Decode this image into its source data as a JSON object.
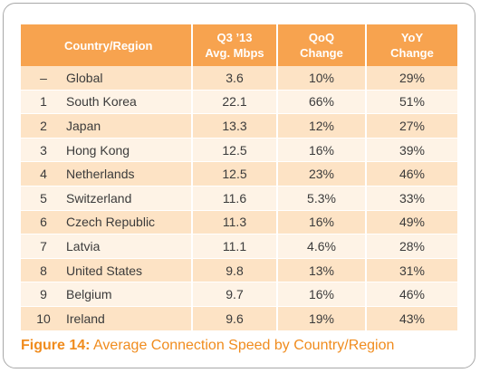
{
  "table": {
    "headers": {
      "country": "Country/Region",
      "speed_line1": "Q3 ’13",
      "speed_line2": "Avg. Mbps",
      "qoq_line1": "QoQ",
      "qoq_line2": "Change",
      "yoy_line1": "YoY",
      "yoy_line2": "Change"
    },
    "rows": [
      {
        "rank": "–",
        "country": "Global",
        "speed": "3.6",
        "qoq": "10%",
        "yoy": "29%"
      },
      {
        "rank": "1",
        "country": "South Korea",
        "speed": "22.1",
        "qoq": "66%",
        "yoy": "51%"
      },
      {
        "rank": "2",
        "country": "Japan",
        "speed": "13.3",
        "qoq": "12%",
        "yoy": "27%"
      },
      {
        "rank": "3",
        "country": "Hong Kong",
        "speed": "12.5",
        "qoq": "16%",
        "yoy": "39%"
      },
      {
        "rank": "4",
        "country": "Netherlands",
        "speed": "12.5",
        "qoq": "23%",
        "yoy": "46%"
      },
      {
        "rank": "5",
        "country": "Switzerland",
        "speed": "11.6",
        "qoq": "5.3%",
        "yoy": "33%"
      },
      {
        "rank": "6",
        "country": "Czech Republic",
        "speed": "11.3",
        "qoq": "16%",
        "yoy": "49%"
      },
      {
        "rank": "7",
        "country": "Latvia",
        "speed": "11.1",
        "qoq": "4.6%",
        "yoy": "28%"
      },
      {
        "rank": "8",
        "country": "United States",
        "speed": "9.8",
        "qoq": "13%",
        "yoy": "31%"
      },
      {
        "rank": "9",
        "country": "Belgium",
        "speed": "9.7",
        "qoq": "16%",
        "yoy": "46%"
      },
      {
        "rank": "10",
        "country": "Ireland",
        "speed": "9.6",
        "qoq": "19%",
        "yoy": "43%"
      }
    ]
  },
  "caption": {
    "label": "Figure 14:",
    "text": " Average Connection Speed by Country/Region"
  },
  "colors": {
    "header_bg": "#f7a34f",
    "row_dark": "#fde3c5",
    "row_light": "#fef3e6",
    "caption": "#f08c1e"
  }
}
